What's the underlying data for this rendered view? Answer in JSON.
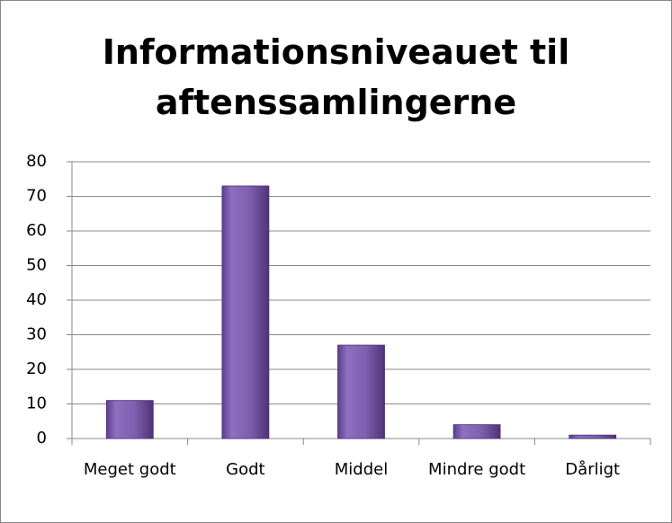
{
  "chart_data": {
    "type": "bar",
    "title": "Informationsniveauet til aftenssamlingerne",
    "categories": [
      "Meget godt",
      "Godt",
      "Middel",
      "Mindre godt",
      "Dårligt"
    ],
    "values": [
      11,
      73,
      27,
      4,
      1
    ],
    "color": "#7e5fae",
    "ylim": [
      0,
      80
    ],
    "yticks": [
      0,
      10,
      20,
      30,
      40,
      50,
      60,
      70,
      80
    ],
    "grid": true
  }
}
